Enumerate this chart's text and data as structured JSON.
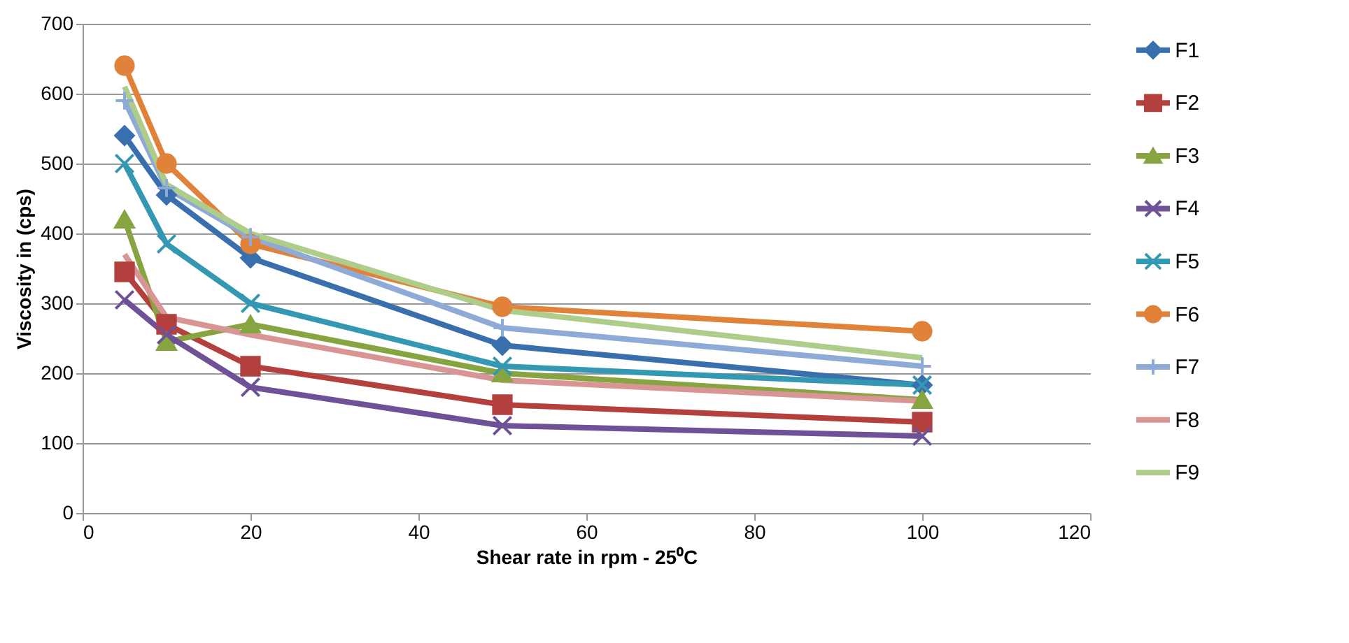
{
  "chart_data": {
    "type": "line",
    "xlabel": "Shear rate in rpm - 25⁰C",
    "ylabel": "Viscosity in (cps)",
    "x": [
      5,
      10,
      20,
      50,
      100
    ],
    "xlim": [
      0,
      120
    ],
    "xticks": [
      0,
      20,
      40,
      60,
      80,
      100,
      120
    ],
    "ylim": [
      0,
      700
    ],
    "yticks": [
      0,
      100,
      200,
      300,
      400,
      500,
      600,
      700
    ],
    "grid": "y",
    "legend": "right",
    "line_style": "solid",
    "series": [
      {
        "name": "F1",
        "color": "#3a6fad",
        "marker": "diamond",
        "values": [
          540,
          455,
          365,
          240,
          183
        ]
      },
      {
        "name": "F2",
        "color": "#b3403d",
        "marker": "square",
        "values": [
          345,
          270,
          210,
          155,
          130
        ]
      },
      {
        "name": "F3",
        "color": "#86a540",
        "marker": "triangle",
        "values": [
          420,
          245,
          270,
          200,
          162
        ]
      },
      {
        "name": "F4",
        "color": "#6e5196",
        "marker": "cross",
        "values": [
          305,
          255,
          180,
          125,
          110
        ]
      },
      {
        "name": "F5",
        "color": "#3598b2",
        "marker": "cross",
        "values": [
          500,
          385,
          300,
          210,
          183
        ]
      },
      {
        "name": "F6",
        "color": "#e0823a",
        "marker": "circle",
        "values": [
          640,
          500,
          385,
          295,
          260
        ]
      },
      {
        "name": "F7",
        "color": "#8eaad6",
        "marker": "plus",
        "values": [
          590,
          465,
          395,
          265,
          210
        ]
      },
      {
        "name": "F8",
        "color": "#d99594",
        "marker": "none",
        "values": [
          370,
          280,
          255,
          190,
          160
        ]
      },
      {
        "name": "F9",
        "color": "#afcd8a",
        "marker": "none",
        "values": [
          610,
          470,
          400,
          290,
          222
        ]
      }
    ]
  }
}
